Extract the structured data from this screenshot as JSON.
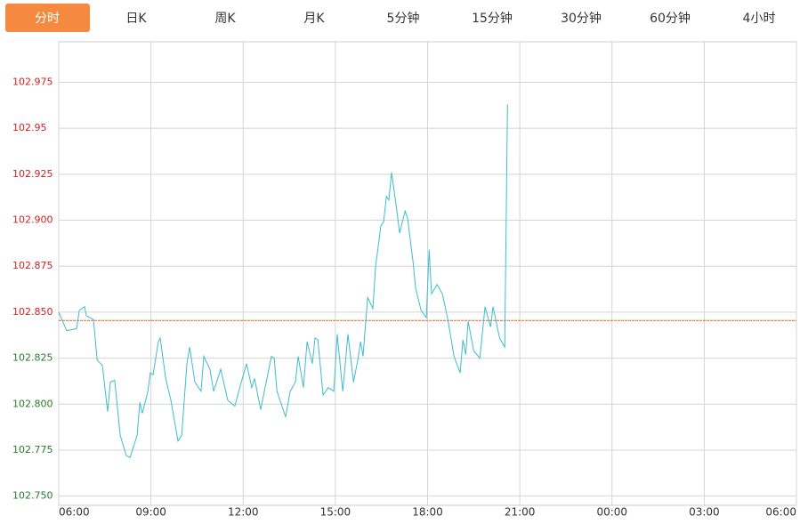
{
  "tabs": [
    "分时",
    "日K",
    "周K",
    "月K",
    "5分钟",
    "15分钟",
    "30分钟",
    "60分钟",
    "4小时"
  ],
  "active_tab": 0,
  "chart_data": {
    "type": "line",
    "color": "#3dbdcc",
    "x": [
      0,
      0.26,
      0.58,
      0.67,
      0.84,
      0.9,
      1.13,
      1.25,
      1.42,
      1.59,
      1.68,
      1.82,
      2.0,
      2.2,
      2.32,
      2.55,
      2.64,
      2.72,
      2.9,
      2.98,
      3.07,
      3.24,
      3.3,
      3.48,
      3.65,
      3.88,
      4.0,
      4.17,
      4.26,
      4.43,
      4.63,
      4.72,
      4.92,
      5.04,
      5.27,
      5.5,
      5.73,
      5.94,
      6.11,
      6.28,
      6.37,
      6.57,
      6.75,
      6.92,
      7.01,
      7.1,
      7.38,
      7.53,
      7.7,
      7.79,
      7.96,
      8.08,
      8.25,
      8.34,
      8.43,
      8.6,
      8.77,
      8.95,
      9.06,
      9.24,
      9.41,
      9.59,
      9.73,
      9.82,
      9.9,
      10.05,
      10.22,
      10.31,
      10.48,
      10.57,
      10.66,
      10.74,
      10.83,
      11.01,
      11.09,
      11.27,
      11.35,
      11.53,
      11.61,
      11.79,
      11.96,
      12.05,
      12.13,
      12.31,
      12.48,
      12.66,
      12.86,
      13.06,
      13.15,
      13.24,
      13.32,
      13.5,
      13.7,
      13.87,
      14.05,
      14.13,
      14.34,
      14.51,
      14.6
    ],
    "values": [
      102.85,
      102.84,
      102.841,
      102.851,
      102.853,
      102.848,
      102.846,
      102.824,
      102.821,
      102.796,
      102.812,
      102.813,
      102.783,
      102.772,
      102.771,
      102.783,
      102.801,
      102.795,
      102.807,
      102.817,
      102.816,
      102.834,
      102.836,
      102.814,
      102.802,
      102.78,
      102.783,
      102.822,
      102.831,
      102.812,
      102.807,
      102.826,
      102.819,
      102.807,
      102.819,
      102.802,
      102.799,
      102.812,
      102.822,
      102.809,
      102.814,
      102.797,
      102.812,
      102.826,
      102.825,
      102.807,
      102.793,
      102.807,
      102.812,
      102.826,
      102.809,
      102.834,
      102.822,
      102.836,
      102.835,
      102.805,
      102.809,
      102.807,
      102.838,
      102.807,
      102.838,
      102.812,
      102.824,
      102.834,
      102.826,
      102.858,
      102.852,
      102.875,
      102.897,
      102.899,
      102.913,
      102.911,
      102.926,
      102.904,
      102.893,
      102.905,
      102.901,
      102.877,
      102.863,
      102.851,
      102.847,
      102.884,
      102.86,
      102.865,
      102.86,
      102.846,
      102.826,
      102.817,
      102.835,
      102.827,
      102.845,
      102.829,
      102.825,
      102.853,
      102.842,
      102.853,
      102.836,
      102.831,
      102.963
    ],
    "reference": 102.8455,
    "reference_color": "#e0601a",
    "up_color": "#d42020",
    "down_color": "#2a7a2a",
    "xlim": [
      0,
      24
    ],
    "xticks": [
      {
        "value": 0,
        "label": "06:00"
      },
      {
        "value": 3,
        "label": "09:00"
      },
      {
        "value": 6,
        "label": "12:00"
      },
      {
        "value": 9,
        "label": "15:00"
      },
      {
        "value": 12,
        "label": "18:00"
      },
      {
        "value": 15,
        "label": "21:00"
      },
      {
        "value": 18,
        "label": "00:00"
      },
      {
        "value": 21,
        "label": "03:00"
      },
      {
        "value": 24,
        "label": "06:00"
      }
    ],
    "ylim": [
      102.745,
      102.997
    ],
    "yticks": [
      {
        "value": 102.75,
        "label": "102.750"
      },
      102.775,
      {
        "value": 102.8,
        "label": "102.800"
      },
      102.825,
      {
        "value": 102.85,
        "label": "102.850"
      },
      102.875,
      {
        "value": 102.9,
        "label": "102.900"
      },
      102.925,
      102.95,
      102.975
    ],
    "grid": true
  }
}
